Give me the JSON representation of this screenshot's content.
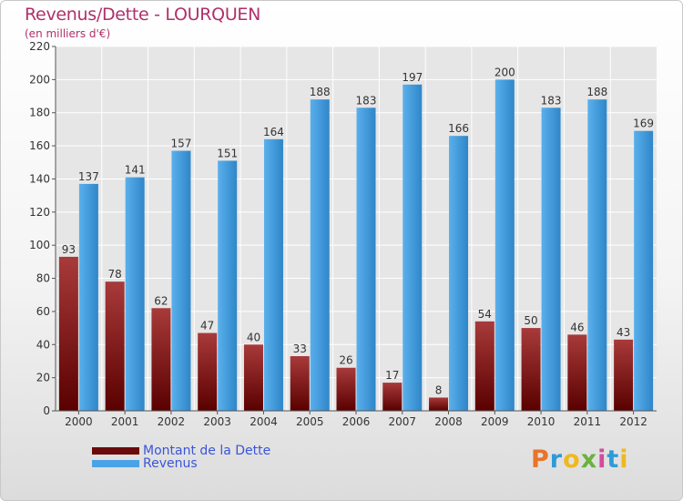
{
  "title": "Revenus/Dette - LOURQUEN",
  "subtitle": "(en milliers d'€)",
  "logo_text": "Proxiti",
  "colors": {
    "dette_dark": "#5a0000",
    "dette_light": "#a83a3a",
    "revenus_dark": "#2a7fc0",
    "revenus_light": "#5ab0ec",
    "axis_text": "#333333",
    "grid": "#ffffff"
  },
  "legend": [
    {
      "label": "Montant de la Dette",
      "color": "#6a0a0a"
    },
    {
      "label": "Revenus",
      "color": "#4aa3e6"
    }
  ],
  "chart_data": {
    "type": "bar",
    "categories": [
      "2000",
      "2001",
      "2002",
      "2003",
      "2004",
      "2005",
      "2006",
      "2007",
      "2008",
      "2009",
      "2010",
      "2011",
      "2012"
    ],
    "series": [
      {
        "name": "Montant de la Dette",
        "values": [
          93,
          78,
          62,
          47,
          40,
          33,
          26,
          17,
          8,
          54,
          50,
          46,
          43
        ]
      },
      {
        "name": "Revenus",
        "values": [
          137,
          141,
          157,
          151,
          164,
          188,
          183,
          197,
          166,
          200,
          183,
          188,
          169
        ]
      }
    ],
    "yticks": [
      0,
      20,
      40,
      60,
      80,
      100,
      120,
      140,
      160,
      180,
      200,
      220
    ],
    "ylim": [
      0,
      220
    ],
    "grid": true,
    "legend_position": "bottom-left"
  }
}
